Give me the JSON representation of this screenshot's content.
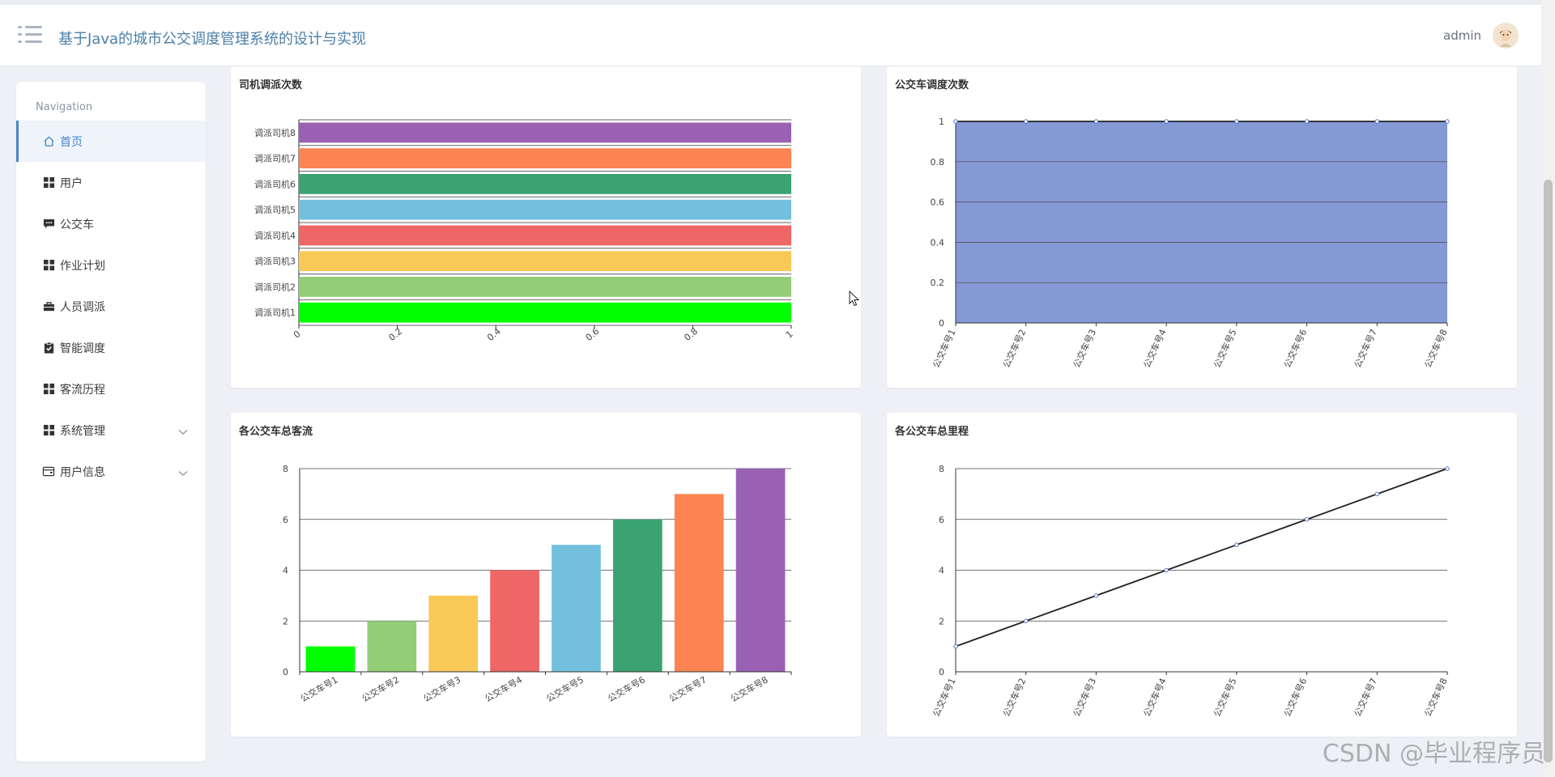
{
  "header": {
    "title": "基于Java的城市公交调度管理系统的设计与实现",
    "username": "admin"
  },
  "sidebar": {
    "heading": "Navigation",
    "items": [
      {
        "label": "首页",
        "icon": "home-icon",
        "active": true
      },
      {
        "label": "用户",
        "icon": "grid-icon"
      },
      {
        "label": "公交车",
        "icon": "chat-icon"
      },
      {
        "label": "作业计划",
        "icon": "grid-icon"
      },
      {
        "label": "人员调派",
        "icon": "briefcase-icon"
      },
      {
        "label": "智能调度",
        "icon": "clipboard-check-icon"
      },
      {
        "label": "客流历程",
        "icon": "grid-icon"
      },
      {
        "label": "系统管理",
        "icon": "grid-icon",
        "expandable": true
      },
      {
        "label": "用户信息",
        "icon": "wallet-icon",
        "expandable": true
      }
    ]
  },
  "charts": {
    "driver": {
      "title": "司机调派次数"
    },
    "dispatch": {
      "title": "公交车调度次数"
    },
    "flow": {
      "title": "各公交车总客流"
    },
    "mileage": {
      "title": "各公交车总里程"
    }
  },
  "chart_data": [
    {
      "type": "bar",
      "orientation": "horizontal",
      "title": "司机调派次数",
      "categories": [
        "调派司机1",
        "调派司机2",
        "调派司机3",
        "调派司机4",
        "调派司机5",
        "调派司机6",
        "调派司机7",
        "调派司机8"
      ],
      "values": [
        1,
        1,
        1,
        1,
        1,
        1,
        1,
        1
      ],
      "colors": [
        "#00ff00",
        "#93cd76",
        "#f9c958",
        "#ee6666",
        "#73c0de",
        "#3ba272",
        "#fc8452",
        "#9a60b4"
      ],
      "xlim": [
        0,
        1
      ],
      "xticks": [
        "0",
        "0.2",
        "0.4",
        "0.6",
        "0.8",
        "1"
      ]
    },
    {
      "type": "area",
      "title": "公交车调度次数",
      "categories": [
        "公交车号1",
        "公交车号2",
        "公交车号3",
        "公交车号4",
        "公交车号5",
        "公交车号6",
        "公交车号7",
        "公交车号8"
      ],
      "values": [
        1,
        1,
        1,
        1,
        1,
        1,
        1,
        1
      ],
      "ylim": [
        0,
        1
      ],
      "yticks": [
        "0",
        "0.2",
        "0.4",
        "0.6",
        "0.8",
        "1"
      ],
      "fill": "#8599d6"
    },
    {
      "type": "bar",
      "title": "各公交车总客流",
      "categories": [
        "公交车号1",
        "公交车号2",
        "公交车号3",
        "公交车号4",
        "公交车号5",
        "公交车号6",
        "公交车号7",
        "公交车号8"
      ],
      "values": [
        1,
        2,
        3,
        4,
        5,
        6,
        7,
        8
      ],
      "colors": [
        "#00ff00",
        "#93cd76",
        "#f9c958",
        "#ee6666",
        "#73c0de",
        "#3ba272",
        "#fc8452",
        "#9a60b4"
      ],
      "ylim": [
        0,
        8
      ],
      "yticks": [
        "0",
        "2",
        "4",
        "6",
        "8"
      ]
    },
    {
      "type": "line",
      "title": "各公交车总里程",
      "categories": [
        "公交车号1",
        "公交车号2",
        "公交车号3",
        "公交车号4",
        "公交车号5",
        "公交车号6",
        "公交车号7",
        "公交车号8"
      ],
      "values": [
        1,
        2,
        3,
        4,
        5,
        6,
        7,
        8
      ],
      "ylim": [
        0,
        8
      ],
      "yticks": [
        "0",
        "2",
        "4",
        "6",
        "8"
      ]
    }
  ],
  "watermark": "CSDN @毕业程序员"
}
